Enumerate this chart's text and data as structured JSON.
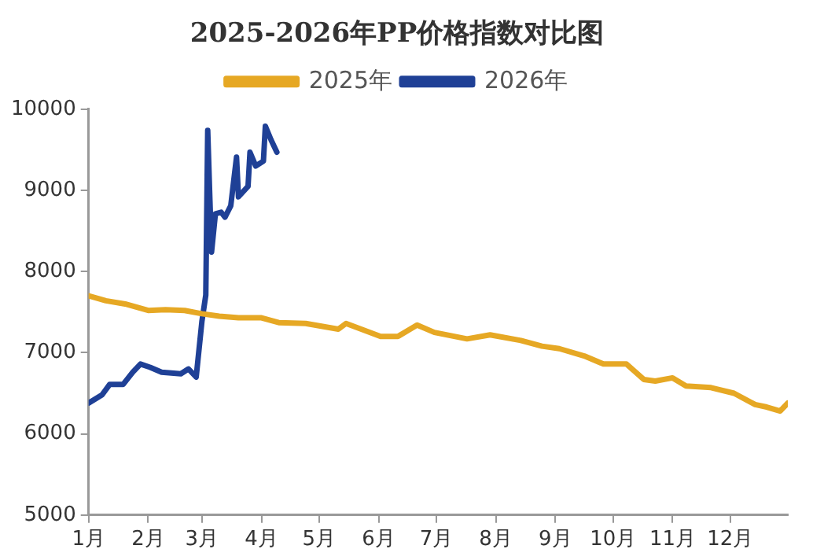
{
  "chart_data": {
    "type": "line",
    "title": "2025-2026年PP价格指数对比图",
    "series": [
      {
        "name": "2025年",
        "color": "#e6a824",
        "x": [
          "--01-01",
          "--01-10",
          "--01-20",
          "--02-01",
          "--02-10",
          "--02-20",
          "--03-01",
          "--03-10",
          "--03-20",
          "--04-01",
          "--04-10",
          "--04-24",
          "--05-11",
          "--05-15",
          "--06-02",
          "--06-11",
          "--06-21",
          "--06-30",
          "--07-17",
          "--07-29",
          "--08-14",
          "--08-25",
          "--09-03",
          "--09-16",
          "--09-26",
          "--10-08",
          "--10-17",
          "--10-23",
          "--11-01",
          "--11-08",
          "--11-21",
          "--12-03",
          "--12-14",
          "--12-20",
          "--12-27",
          "--12-31"
        ],
        "values": [
          7700,
          7640,
          7600,
          7520,
          7530,
          7520,
          7480,
          7450,
          7430,
          7430,
          7370,
          7360,
          7290,
          7360,
          7200,
          7200,
          7340,
          7250,
          7170,
          7220,
          7150,
          7080,
          7050,
          6960,
          6860,
          6860,
          6670,
          6650,
          6690,
          6590,
          6570,
          6500,
          6360,
          6330,
          6280,
          6380
        ]
      },
      {
        "name": "2026年",
        "color": "#1f4096",
        "x": [
          "--01-01",
          "--01-08",
          "--01-12",
          "--01-19",
          "--01-24",
          "--01-28",
          "--02-02",
          "--02-08",
          "--02-18",
          "--02-22",
          "--02-26",
          "--03-01",
          "--03-03",
          "--03-04",
          "--03-06",
          "--03-08",
          "--03-11",
          "--03-13",
          "--03-16",
          "--03-19",
          "--03-20",
          "--03-25",
          "--03-26",
          "--03-29",
          "--04-02",
          "--04-03",
          "--04-06",
          "--04-09"
        ],
        "values": [
          6380,
          6480,
          6610,
          6610,
          6760,
          6860,
          6820,
          6760,
          6740,
          6800,
          6700,
          7390,
          7710,
          9740,
          8240,
          8710,
          8730,
          8670,
          8810,
          9410,
          8920,
          9050,
          9470,
          9300,
          9360,
          9790,
          9620,
          9470
        ]
      }
    ],
    "xlim": [
      "--01-01",
      "--12-31"
    ],
    "xticks": [
      {
        "value": "--01-01",
        "label": "1月"
      },
      {
        "value": "--02-01",
        "label": "2月"
      },
      {
        "value": "--03-01",
        "label": "3月"
      },
      {
        "value": "--04-01",
        "label": "4月"
      },
      {
        "value": "--05-01",
        "label": "5月"
      },
      {
        "value": "--06-01",
        "label": "6月"
      },
      {
        "value": "--07-01",
        "label": "7月"
      },
      {
        "value": "--08-01",
        "label": "8月"
      },
      {
        "value": "--09-01",
        "label": "9月"
      },
      {
        "value": "--10-01",
        "label": "10月"
      },
      {
        "value": "--11-01",
        "label": "11月"
      },
      {
        "value": "--12-01",
        "label": "12月"
      }
    ],
    "ylim": [
      5000,
      10000
    ],
    "yticks": [
      5000,
      6000,
      7000,
      8000,
      9000,
      10000
    ],
    "grid": false,
    "legend": "top",
    "marker": "none",
    "line_style": "solid"
  }
}
